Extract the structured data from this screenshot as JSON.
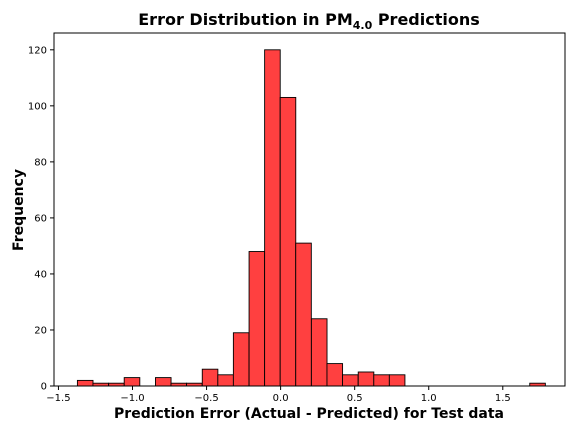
{
  "chart_data": {
    "type": "bar",
    "title_main": "Error Distribution in PM",
    "title_sub": "4.0",
    "title_end": " Predictions",
    "xlabel": "Prediction Error (Actual - Predicted) for Test data",
    "ylabel": "Frequency",
    "xlim": [
      -1.53,
      1.92
    ],
    "ylim": [
      0,
      126
    ],
    "xticks": [
      -1.5,
      -1.0,
      -0.5,
      0.0,
      0.5,
      1.0,
      1.5
    ],
    "xtick_labels": [
      "−1.5",
      "−1.0",
      "−0.5",
      "0.0",
      "0.5",
      "1.0",
      "1.5"
    ],
    "yticks": [
      0,
      20,
      40,
      60,
      80,
      100,
      120
    ],
    "ytick_labels": [
      "0",
      "20",
      "40",
      "60",
      "80",
      "100",
      "120"
    ],
    "bar_color": "#ff4040",
    "bin_width": 0.1053,
    "bins_start": [
      -1.372,
      -1.267,
      -1.161,
      -1.056,
      -0.845,
      -0.74,
      -0.635,
      -0.529,
      -0.424,
      -0.319,
      -0.213,
      -0.108,
      -0.003,
      0.102,
      0.208,
      0.313,
      0.418,
      0.524,
      0.629,
      0.734,
      1.682
    ],
    "values": [
      2,
      1,
      1,
      3,
      3,
      1,
      1,
      6,
      4,
      19,
      48,
      120,
      103,
      51,
      24,
      8,
      4,
      5,
      4,
      4,
      1
    ]
  }
}
